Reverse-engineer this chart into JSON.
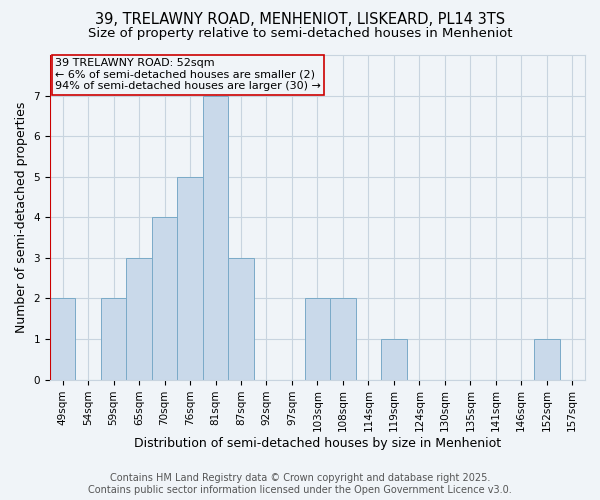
{
  "title": "39, TRELAWNY ROAD, MENHENIOT, LISKEARD, PL14 3TS",
  "subtitle": "Size of property relative to semi-detached houses in Menheniot",
  "xlabel": "Distribution of semi-detached houses by size in Menheniot",
  "ylabel": "Number of semi-detached properties",
  "footer_line1": "Contains HM Land Registry data © Crown copyright and database right 2025.",
  "footer_line2": "Contains public sector information licensed under the Open Government Licence v3.0.",
  "annotation_line1": "39 TRELAWNY ROAD: 52sqm",
  "annotation_line2": "← 6% of semi-detached houses are smaller (2)",
  "annotation_line3": "94% of semi-detached houses are larger (30) →",
  "bar_color": "#c9d9ea",
  "bar_edgecolor": "#7aaac8",
  "vline_color": "#cc0000",
  "annotation_box_edgecolor": "#cc0000",
  "background_color": "#f0f4f8",
  "categories": [
    "49sqm",
    "54sqm",
    "59sqm",
    "65sqm",
    "70sqm",
    "76sqm",
    "81sqm",
    "87sqm",
    "92sqm",
    "97sqm",
    "103sqm",
    "108sqm",
    "114sqm",
    "119sqm",
    "124sqm",
    "130sqm",
    "135sqm",
    "141sqm",
    "146sqm",
    "152sqm",
    "157sqm"
  ],
  "values": [
    2,
    0,
    2,
    3,
    4,
    5,
    7,
    3,
    0,
    0,
    2,
    2,
    0,
    1,
    0,
    0,
    0,
    0,
    0,
    1,
    0
  ],
  "vline_index": 0,
  "ylim": [
    0,
    8
  ],
  "yticks": [
    0,
    1,
    2,
    3,
    4,
    5,
    6,
    7
  ],
  "grid_color": "#c8d4df",
  "title_fontsize": 10.5,
  "subtitle_fontsize": 9.5,
  "axis_label_fontsize": 9,
  "tick_fontsize": 7.5,
  "annotation_fontsize": 8,
  "footer_fontsize": 7
}
